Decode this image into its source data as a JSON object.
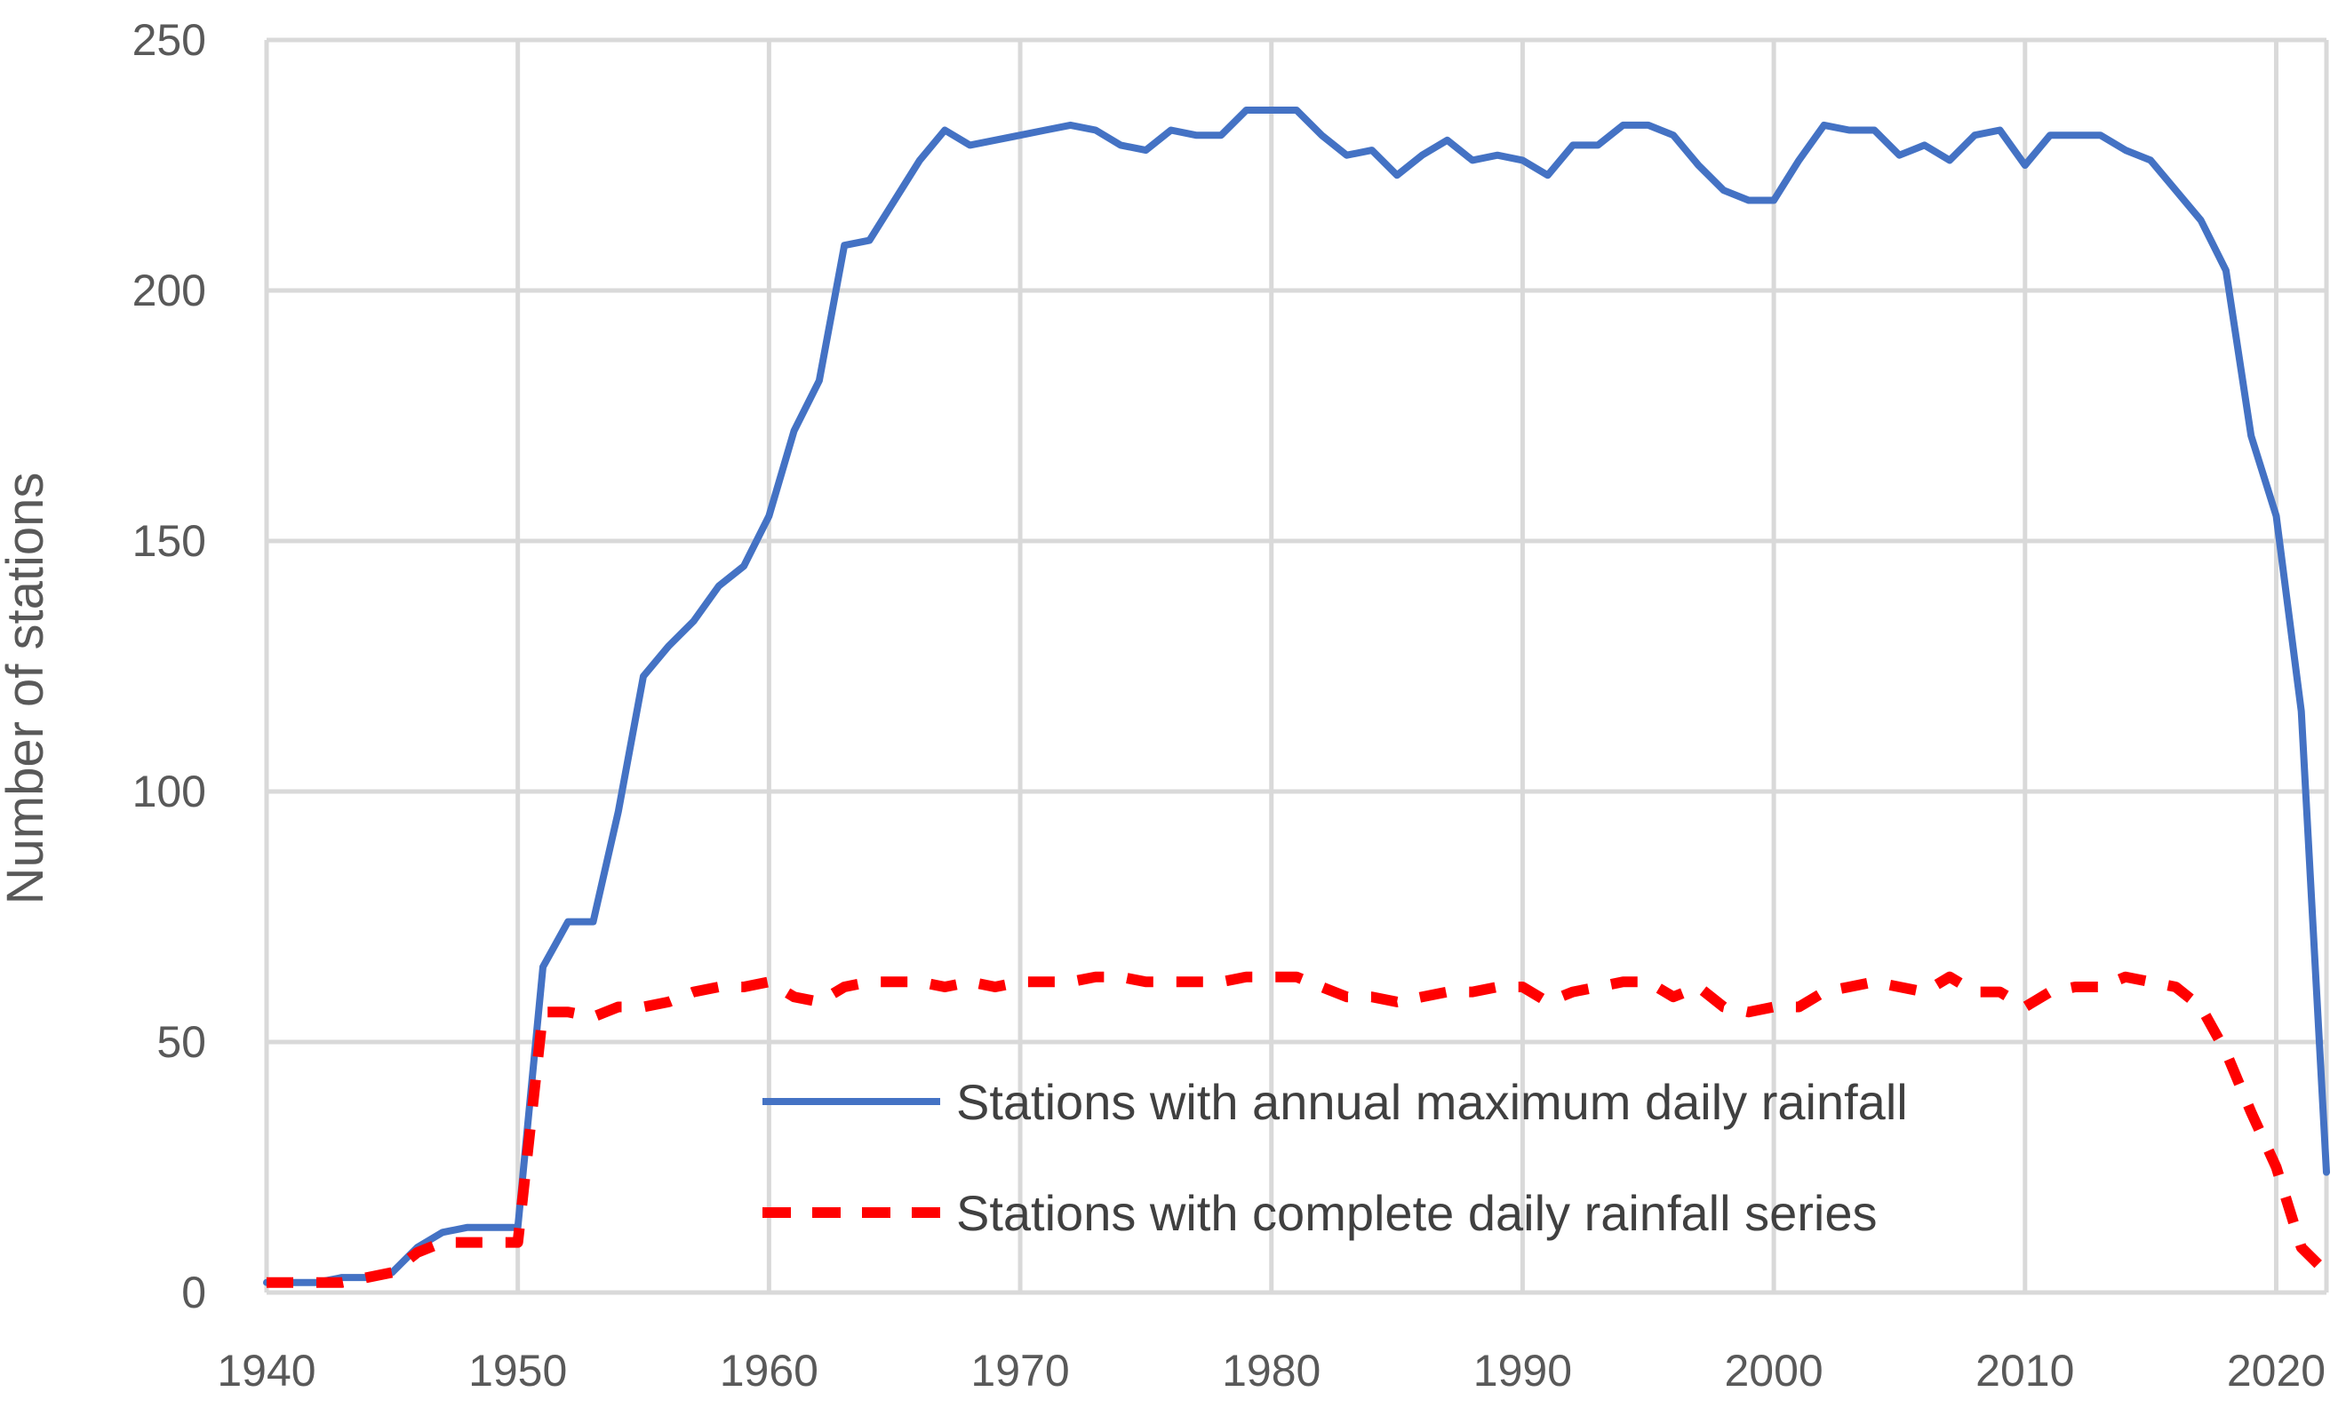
{
  "chart_data": {
    "type": "line",
    "title": "",
    "xlabel": "",
    "ylabel": "Number of stations",
    "xlim": [
      1940,
      2022
    ],
    "ylim": [
      0,
      250
    ],
    "x_ticks": [
      1940,
      1950,
      1960,
      1970,
      1980,
      1990,
      2000,
      2010,
      2020
    ],
    "y_ticks": [
      0,
      50,
      100,
      150,
      200,
      250
    ],
    "grid": true,
    "legend_position": "bottom-right",
    "series": [
      {
        "name": "Stations with annual maximum daily rainfall",
        "color": "#4472c4",
        "style": "solid",
        "points": [
          [
            1940,
            2
          ],
          [
            1941,
            2
          ],
          [
            1942,
            2
          ],
          [
            1943,
            3
          ],
          [
            1944,
            3
          ],
          [
            1945,
            4
          ],
          [
            1946,
            9
          ],
          [
            1947,
            12
          ],
          [
            1948,
            13
          ],
          [
            1949,
            13
          ],
          [
            1950,
            13
          ],
          [
            1951,
            65
          ],
          [
            1952,
            74
          ],
          [
            1953,
            74
          ],
          [
            1954,
            96
          ],
          [
            1955,
            123
          ],
          [
            1956,
            129
          ],
          [
            1957,
            134
          ],
          [
            1958,
            141
          ],
          [
            1959,
            145
          ],
          [
            1960,
            155
          ],
          [
            1961,
            172
          ],
          [
            1962,
            182
          ],
          [
            1963,
            209
          ],
          [
            1964,
            210
          ],
          [
            1965,
            218
          ],
          [
            1966,
            226
          ],
          [
            1967,
            232
          ],
          [
            1968,
            229
          ],
          [
            1969,
            230
          ],
          [
            1970,
            231
          ],
          [
            1971,
            232
          ],
          [
            1972,
            233
          ],
          [
            1973,
            232
          ],
          [
            1974,
            229
          ],
          [
            1975,
            228
          ],
          [
            1976,
            232
          ],
          [
            1977,
            231
          ],
          [
            1978,
            231
          ],
          [
            1979,
            236
          ],
          [
            1980,
            236
          ],
          [
            1981,
            236
          ],
          [
            1982,
            231
          ],
          [
            1983,
            227
          ],
          [
            1984,
            228
          ],
          [
            1985,
            223
          ],
          [
            1986,
            227
          ],
          [
            1987,
            230
          ],
          [
            1988,
            226
          ],
          [
            1989,
            227
          ],
          [
            1990,
            226
          ],
          [
            1991,
            223
          ],
          [
            1992,
            229
          ],
          [
            1993,
            229
          ],
          [
            1994,
            233
          ],
          [
            1995,
            233
          ],
          [
            1996,
            231
          ],
          [
            1997,
            225
          ],
          [
            1998,
            220
          ],
          [
            1999,
            218
          ],
          [
            2000,
            218
          ],
          [
            2001,
            226
          ],
          [
            2002,
            233
          ],
          [
            2003,
            232
          ],
          [
            2004,
            232
          ],
          [
            2005,
            227
          ],
          [
            2006,
            229
          ],
          [
            2007,
            226
          ],
          [
            2008,
            231
          ],
          [
            2009,
            232
          ],
          [
            2010,
            225
          ],
          [
            2011,
            231
          ],
          [
            2012,
            231
          ],
          [
            2013,
            231
          ],
          [
            2014,
            228
          ],
          [
            2015,
            226
          ],
          [
            2016,
            220
          ],
          [
            2017,
            214
          ],
          [
            2018,
            204
          ],
          [
            2019,
            171
          ],
          [
            2020,
            155
          ],
          [
            2021,
            116
          ],
          [
            2022,
            24
          ]
        ]
      },
      {
        "name": "Stations with complete daily rainfall series",
        "color": "#ff0000",
        "style": "dashed",
        "points": [
          [
            1940,
            2
          ],
          [
            1941,
            2
          ],
          [
            1942,
            2
          ],
          [
            1943,
            2
          ],
          [
            1944,
            3
          ],
          [
            1945,
            4
          ],
          [
            1946,
            8
          ],
          [
            1947,
            10
          ],
          [
            1948,
            10
          ],
          [
            1949,
            10
          ],
          [
            1950,
            10
          ],
          [
            1951,
            56
          ],
          [
            1952,
            56
          ],
          [
            1953,
            55
          ],
          [
            1954,
            57
          ],
          [
            1955,
            57
          ],
          [
            1956,
            58
          ],
          [
            1957,
            60
          ],
          [
            1958,
            61
          ],
          [
            1959,
            61
          ],
          [
            1960,
            62
          ],
          [
            1961,
            59
          ],
          [
            1962,
            58
          ],
          [
            1963,
            61
          ],
          [
            1964,
            62
          ],
          [
            1965,
            62
          ],
          [
            1966,
            62
          ],
          [
            1967,
            61
          ],
          [
            1968,
            62
          ],
          [
            1969,
            61
          ],
          [
            1970,
            62
          ],
          [
            1971,
            62
          ],
          [
            1972,
            62
          ],
          [
            1973,
            63
          ],
          [
            1974,
            63
          ],
          [
            1975,
            62
          ],
          [
            1976,
            62
          ],
          [
            1977,
            62
          ],
          [
            1978,
            62
          ],
          [
            1979,
            63
          ],
          [
            1980,
            63
          ],
          [
            1981,
            63
          ],
          [
            1982,
            61
          ],
          [
            1983,
            59
          ],
          [
            1984,
            59
          ],
          [
            1985,
            58
          ],
          [
            1986,
            59
          ],
          [
            1987,
            60
          ],
          [
            1988,
            60
          ],
          [
            1989,
            61
          ],
          [
            1990,
            61
          ],
          [
            1991,
            58
          ],
          [
            1992,
            60
          ],
          [
            1993,
            61
          ],
          [
            1994,
            62
          ],
          [
            1995,
            62
          ],
          [
            1996,
            59
          ],
          [
            1997,
            61
          ],
          [
            1998,
            57
          ],
          [
            1999,
            56
          ],
          [
            2000,
            57
          ],
          [
            2001,
            57
          ],
          [
            2002,
            60
          ],
          [
            2003,
            61
          ],
          [
            2004,
            62
          ],
          [
            2005,
            61
          ],
          [
            2006,
            60
          ],
          [
            2007,
            63
          ],
          [
            2008,
            60
          ],
          [
            2009,
            60
          ],
          [
            2010,
            57
          ],
          [
            2011,
            60
          ],
          [
            2012,
            61
          ],
          [
            2013,
            61
          ],
          [
            2014,
            63
          ],
          [
            2015,
            62
          ],
          [
            2016,
            61
          ],
          [
            2017,
            57
          ],
          [
            2018,
            48
          ],
          [
            2019,
            36
          ],
          [
            2020,
            25
          ],
          [
            2021,
            9
          ],
          [
            2022,
            4
          ]
        ]
      }
    ]
  }
}
